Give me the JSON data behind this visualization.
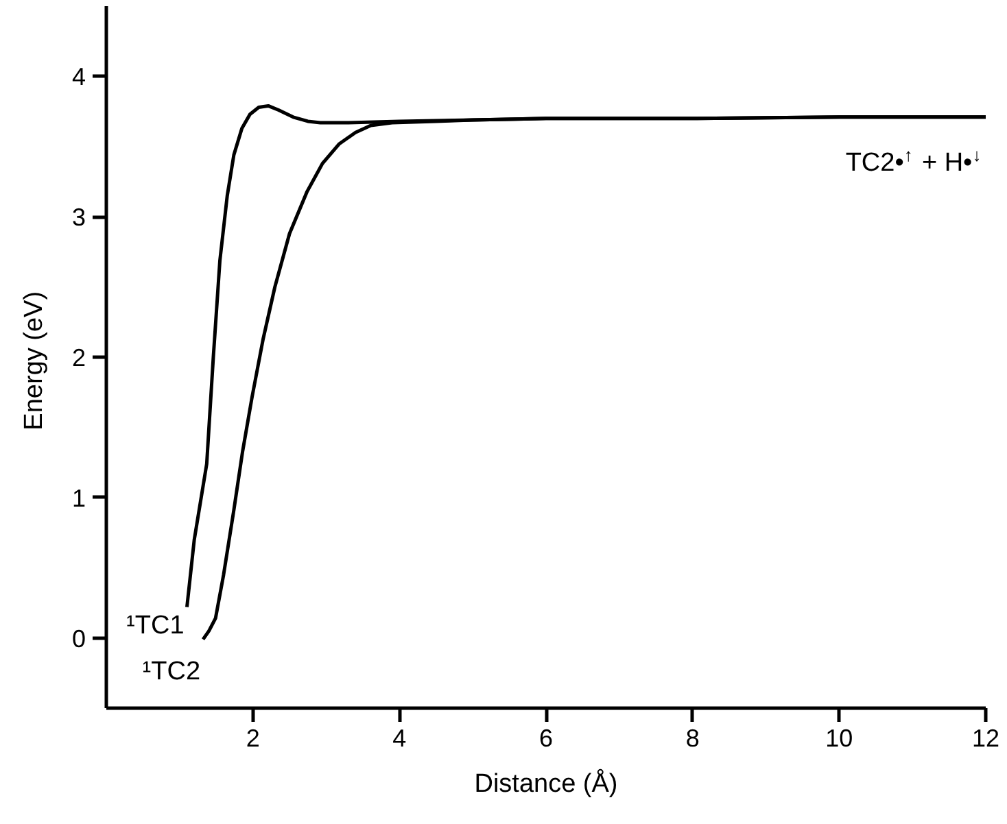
{
  "chart_data": {
    "type": "line",
    "xlabel": "Distance (Å)",
    "ylabel": "Energy  (eV)",
    "xlim": [
      0,
      12
    ],
    "ylim": [
      -0.5,
      4.5
    ],
    "xticks": [
      2,
      4,
      6,
      8,
      10,
      12
    ],
    "yticks": [
      0,
      1,
      2,
      3,
      4
    ],
    "grid": false,
    "marker": "none",
    "line_style": "solid",
    "series": [
      {
        "color": "#000000",
        "x": [
          1.1,
          1.2,
          1.37,
          1.46,
          1.55,
          1.65,
          1.74,
          1.85,
          1.96,
          2.08,
          2.21,
          2.35,
          2.55,
          2.75,
          2.92,
          3.3,
          4,
          5,
          6,
          8,
          10,
          12
        ],
        "values": [
          0.22,
          0.7,
          1.24,
          2.0,
          2.69,
          3.15,
          3.44,
          3.63,
          3.73,
          3.78,
          3.79,
          3.76,
          3.71,
          3.68,
          3.67,
          3.67,
          3.68,
          3.69,
          3.7,
          3.7,
          3.71,
          3.71
        ]
      },
      {
        "color": "#000000",
        "x": [
          1.32,
          1.4,
          1.49,
          1.6,
          1.74,
          1.86,
          1.99,
          2.14,
          2.3,
          2.5,
          2.74,
          2.95,
          3.18,
          3.4,
          3.61,
          3.9,
          4.5,
          5,
          6,
          8,
          10,
          12
        ],
        "values": [
          -0.01,
          0.05,
          0.14,
          0.45,
          0.91,
          1.33,
          1.72,
          2.13,
          2.5,
          2.88,
          3.18,
          3.38,
          3.52,
          3.6,
          3.65,
          3.67,
          3.68,
          3.69,
          3.7,
          3.7,
          3.71,
          3.71
        ]
      }
    ],
    "annotations": [
      {
        "text": "¹TC1",
        "x": 1.1,
        "y": 0.22
      },
      {
        "text": "¹TC2",
        "x": 1.32,
        "y": -0.01
      },
      {
        "text": "TC2•$^{↑}$ + H•$^{↓}$",
        "x": 12,
        "y": 3.71
      }
    ]
  }
}
